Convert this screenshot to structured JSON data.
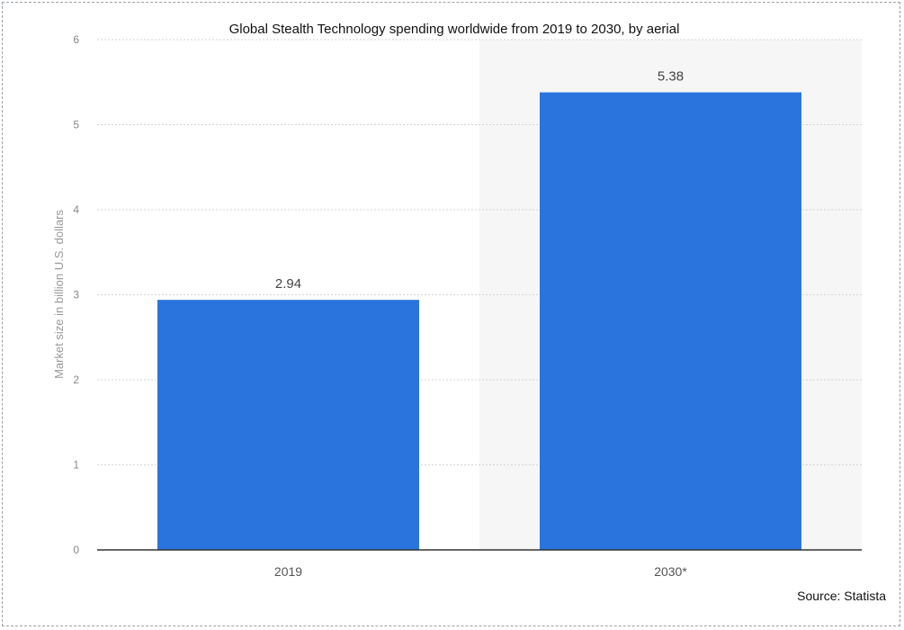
{
  "chart_data": {
    "type": "bar",
    "title": "Global Stealth Technology spending worldwide from 2019 to 2030, by aerial",
    "xlabel": "",
    "ylabel": "Market size in billion U.S. dollars",
    "categories": [
      "2019",
      "2030*"
    ],
    "values": [
      2.94,
      5.38
    ],
    "value_labels": [
      "2.94",
      "5.38"
    ],
    "ylim": [
      0,
      6
    ],
    "yticks": [
      0,
      1,
      2,
      3,
      4,
      5,
      6
    ],
    "grid": true,
    "legend": "none",
    "bar_color": "#2a75dd",
    "source": "Source: Statista"
  },
  "colors": {
    "bar": "#2a75dd",
    "forecast_band": "#f6f6f6",
    "grid": "#d4d4d4",
    "axis": "#333333"
  }
}
